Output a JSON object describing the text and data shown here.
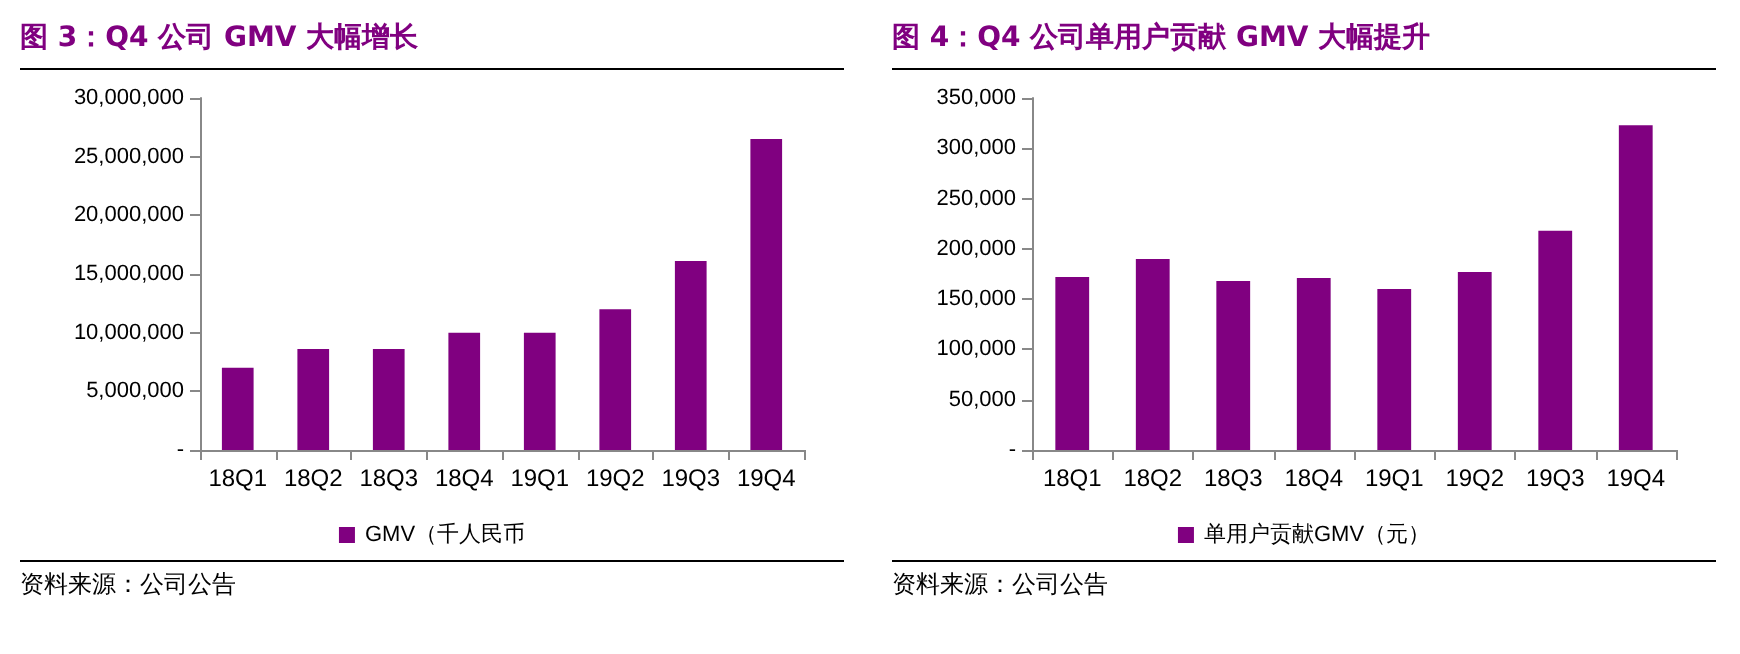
{
  "chart_data": [
    {
      "type": "bar",
      "title": "图 3：Q4 公司 GMV 大幅增长",
      "categories": [
        "18Q1",
        "18Q2",
        "18Q3",
        "18Q4",
        "19Q1",
        "19Q2",
        "19Q3",
        "19Q4"
      ],
      "series": [
        {
          "name": "GMV（千人民币",
          "color": "#800080",
          "values": [
            7000000,
            8600000,
            8600000,
            10000000,
            10000000,
            12000000,
            16100000,
            26500000
          ]
        }
      ],
      "ylim": [
        0,
        30000000
      ],
      "yticks": [
        {
          "value": 0,
          "label": "-"
        },
        {
          "value": 5000000,
          "label": "5,000,000"
        },
        {
          "value": 10000000,
          "label": "10,000,000"
        },
        {
          "value": 15000000,
          "label": "15,000,000"
        },
        {
          "value": 20000000,
          "label": "20,000,000"
        },
        {
          "value": 25000000,
          "label": "25,000,000"
        },
        {
          "value": 30000000,
          "label": "30,000,000"
        }
      ],
      "legend": "bottom",
      "grid": false,
      "annotations": [
        "资料来源：公司公告"
      ]
    },
    {
      "type": "bar",
      "title": "图 4：Q4 公司单用户贡献 GMV 大幅提升",
      "categories": [
        "18Q1",
        "18Q2",
        "18Q3",
        "18Q4",
        "19Q1",
        "19Q2",
        "19Q3",
        "19Q4"
      ],
      "series": [
        {
          "name": "单用户贡献GMV（元）",
          "color": "#800080",
          "values": [
            172000,
            190000,
            168000,
            171000,
            160000,
            177000,
            218000,
            323000
          ]
        }
      ],
      "ylim": [
        0,
        350000
      ],
      "yticks": [
        {
          "value": 0,
          "label": "-"
        },
        {
          "value": 50000,
          "label": "50,000"
        },
        {
          "value": 100000,
          "label": "100,000"
        },
        {
          "value": 150000,
          "label": "150,000"
        },
        {
          "value": 200000,
          "label": "200,000"
        },
        {
          "value": 250000,
          "label": "250,000"
        },
        {
          "value": 300000,
          "label": "300,000"
        },
        {
          "value": 350000,
          "label": "350,000"
        }
      ],
      "legend": "bottom",
      "grid": false,
      "annotations": [
        "资料来源：公司公告"
      ]
    }
  ]
}
